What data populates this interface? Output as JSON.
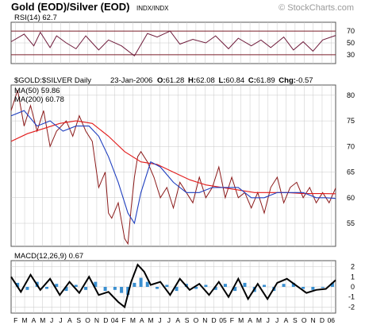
{
  "header": {
    "title": "Gold (EOD)/Silver (EOD)",
    "symbol": "INDX/INDX",
    "watermark": "© StockCharts.com"
  },
  "chart_data": [
    {
      "type": "line",
      "panel": "rsi",
      "label": "RSI(14)",
      "last_value": "62.7",
      "ylim": [
        15,
        85
      ],
      "y_ticks": [
        "70",
        "50",
        "30"
      ],
      "reference_lines": [
        70,
        30
      ],
      "series": [
        {
          "x": [
            0,
            0.04,
            0.07,
            0.09,
            0.12,
            0.14,
            0.17,
            0.2,
            0.23,
            0.27,
            0.3,
            0.34,
            0.38,
            0.42,
            0.45,
            0.49,
            0.52,
            0.56,
            0.6,
            0.63,
            0.67,
            0.7,
            0.74,
            0.77,
            0.8,
            0.84,
            0.87,
            0.9,
            0.93,
            0.96,
            1
          ],
          "values": [
            52,
            65,
            45,
            68,
            42,
            62,
            50,
            40,
            62,
            38,
            55,
            45,
            28,
            66,
            60,
            70,
            48,
            56,
            50,
            62,
            40,
            58,
            45,
            55,
            42,
            60,
            38,
            52,
            36,
            55,
            62.7
          ]
        }
      ]
    },
    {
      "type": "line",
      "panel": "price",
      "label": "$GOLD:$SILVER Daily",
      "date": "23-Jan-2006",
      "ohlc": {
        "O": "61.28",
        "H": "62.08",
        "L": "60.84",
        "C": "61.89",
        "Chg": "-0.57"
      },
      "ylim": [
        50.5,
        82
      ],
      "y_ticks": [
        "80",
        "75",
        "70",
        "65",
        "60",
        "55"
      ],
      "series": [
        {
          "name": "$GOLD:$SILVER",
          "x": [
            0,
            0.02,
            0.04,
            0.06,
            0.08,
            0.1,
            0.12,
            0.14,
            0.17,
            0.19,
            0.21,
            0.23,
            0.25,
            0.27,
            0.29,
            0.3,
            0.31,
            0.33,
            0.35,
            0.36,
            0.37,
            0.38,
            0.39,
            0.4,
            0.42,
            0.44,
            0.46,
            0.48,
            0.5,
            0.52,
            0.54,
            0.56,
            0.58,
            0.6,
            0.62,
            0.64,
            0.66,
            0.68,
            0.7,
            0.72,
            0.74,
            0.76,
            0.78,
            0.8,
            0.82,
            0.84,
            0.86,
            0.88,
            0.9,
            0.92,
            0.94,
            0.96,
            0.98,
            1
          ],
          "values": [
            77,
            81,
            74,
            78,
            73,
            77,
            70,
            73,
            75,
            72,
            76,
            73,
            71,
            62,
            65,
            57,
            56,
            59,
            52,
            51,
            58,
            64,
            68,
            69,
            67,
            64,
            60,
            62,
            58,
            63,
            61,
            59,
            64,
            60,
            62,
            66,
            60,
            64,
            60,
            61,
            58,
            61,
            57,
            62,
            64,
            59,
            62,
            63,
            60,
            62,
            59,
            61,
            59,
            61.89
          ]
        },
        {
          "name": "MA(50)",
          "last_value": "59.86",
          "x": [
            0,
            0.04,
            0.08,
            0.12,
            0.16,
            0.2,
            0.24,
            0.27,
            0.3,
            0.33,
            0.36,
            0.38,
            0.4,
            0.43,
            0.46,
            0.5,
            0.54,
            0.58,
            0.62,
            0.66,
            0.7,
            0.74,
            0.78,
            0.82,
            0.86,
            0.9,
            0.94,
            0.97,
            1
          ],
          "values": [
            76,
            77,
            74,
            75,
            73,
            74,
            74,
            72,
            68,
            63,
            57,
            55,
            61,
            67,
            66,
            63,
            61,
            61,
            62,
            62,
            62,
            60,
            60,
            61,
            61,
            61,
            60,
            60,
            59.86
          ]
        },
        {
          "name": "MA(200)",
          "last_value": "60.78",
          "x": [
            0,
            0.05,
            0.1,
            0.15,
            0.2,
            0.25,
            0.3,
            0.35,
            0.4,
            0.45,
            0.5,
            0.55,
            0.6,
            0.65,
            0.7,
            0.75,
            0.8,
            0.85,
            0.9,
            0.95,
            1
          ],
          "values": [
            71,
            72.5,
            73.5,
            74.5,
            75,
            74.5,
            72,
            69,
            67,
            66.5,
            65,
            63.5,
            62.5,
            62,
            61.5,
            61,
            61,
            61,
            60.8,
            60.8,
            60.78
          ]
        }
      ]
    },
    {
      "type": "line",
      "panel": "macd",
      "label": "MACD(12,26,9)",
      "last_value": "0.67",
      "ylim": [
        -2.6,
        2.6
      ],
      "y_ticks": [
        "2",
        "1",
        "0",
        "-1",
        "-2"
      ],
      "series": [
        {
          "name": "MACD",
          "x": [
            0,
            0.03,
            0.06,
            0.09,
            0.12,
            0.15,
            0.18,
            0.21,
            0.24,
            0.27,
            0.3,
            0.33,
            0.35,
            0.37,
            0.39,
            0.41,
            0.43,
            0.46,
            0.49,
            0.52,
            0.55,
            0.58,
            0.61,
            0.64,
            0.67,
            0.7,
            0.73,
            0.76,
            0.79,
            0.82,
            0.85,
            0.88,
            0.91,
            0.94,
            0.97,
            1
          ],
          "values": [
            1.0,
            -0.5,
            1.2,
            -0.3,
            0.8,
            -0.8,
            0.5,
            -0.6,
            1.0,
            -0.8,
            -0.5,
            -1.5,
            -2.0,
            0.5,
            2.2,
            1.5,
            0.2,
            0.5,
            -0.8,
            0.8,
            -0.3,
            0.3,
            -0.8,
            0.5,
            -1.0,
            0.8,
            -1.2,
            0.3,
            -1.2,
            0.4,
            0.8,
            0.1,
            -0.6,
            -0.3,
            -0.2,
            0.67
          ]
        },
        {
          "name": "Histogram",
          "x": [
            0.02,
            0.05,
            0.08,
            0.11,
            0.14,
            0.17,
            0.2,
            0.23,
            0.26,
            0.29,
            0.32,
            0.34,
            0.36,
            0.38,
            0.4,
            0.42,
            0.45,
            0.48,
            0.51,
            0.54,
            0.57,
            0.6,
            0.63,
            0.66,
            0.69,
            0.72,
            0.75,
            0.78,
            0.81,
            0.84,
            0.87,
            0.9,
            0.93,
            0.96,
            0.99
          ],
          "values": [
            0.4,
            -0.3,
            0.5,
            -0.2,
            0.3,
            -0.4,
            0.2,
            -0.3,
            0.5,
            -0.4,
            -0.3,
            -0.6,
            -0.8,
            0.4,
            0.9,
            0.5,
            -0.2,
            0.2,
            -0.4,
            0.3,
            -0.2,
            0.2,
            -0.3,
            0.3,
            -0.4,
            0.4,
            -0.5,
            0.2,
            -0.4,
            0.3,
            0.4,
            -0.2,
            -0.3,
            -0.1,
            0.4
          ]
        }
      ]
    }
  ],
  "x_axis": {
    "months": [
      "F",
      "M",
      "A",
      "M",
      "J",
      "J",
      "A",
      "S",
      "O",
      "N",
      "D",
      "04",
      "F",
      "M",
      "A",
      "M",
      "J",
      "J",
      "A",
      "S",
      "O",
      "N",
      "D",
      "05",
      "F",
      "M",
      "A",
      "M",
      "J",
      "J",
      "A",
      "S",
      "O",
      "N",
      "D",
      "06"
    ]
  },
  "colors": {
    "price": "#8b1a1a",
    "ma50": "#1f3fbf",
    "ma200": "#e21a1a",
    "rsi": "#6e1a3a",
    "rsi_ref": "#7b1f2a",
    "macd": "#000000",
    "histogram": "#3a8fd0",
    "grid": "#c8c8c8"
  }
}
